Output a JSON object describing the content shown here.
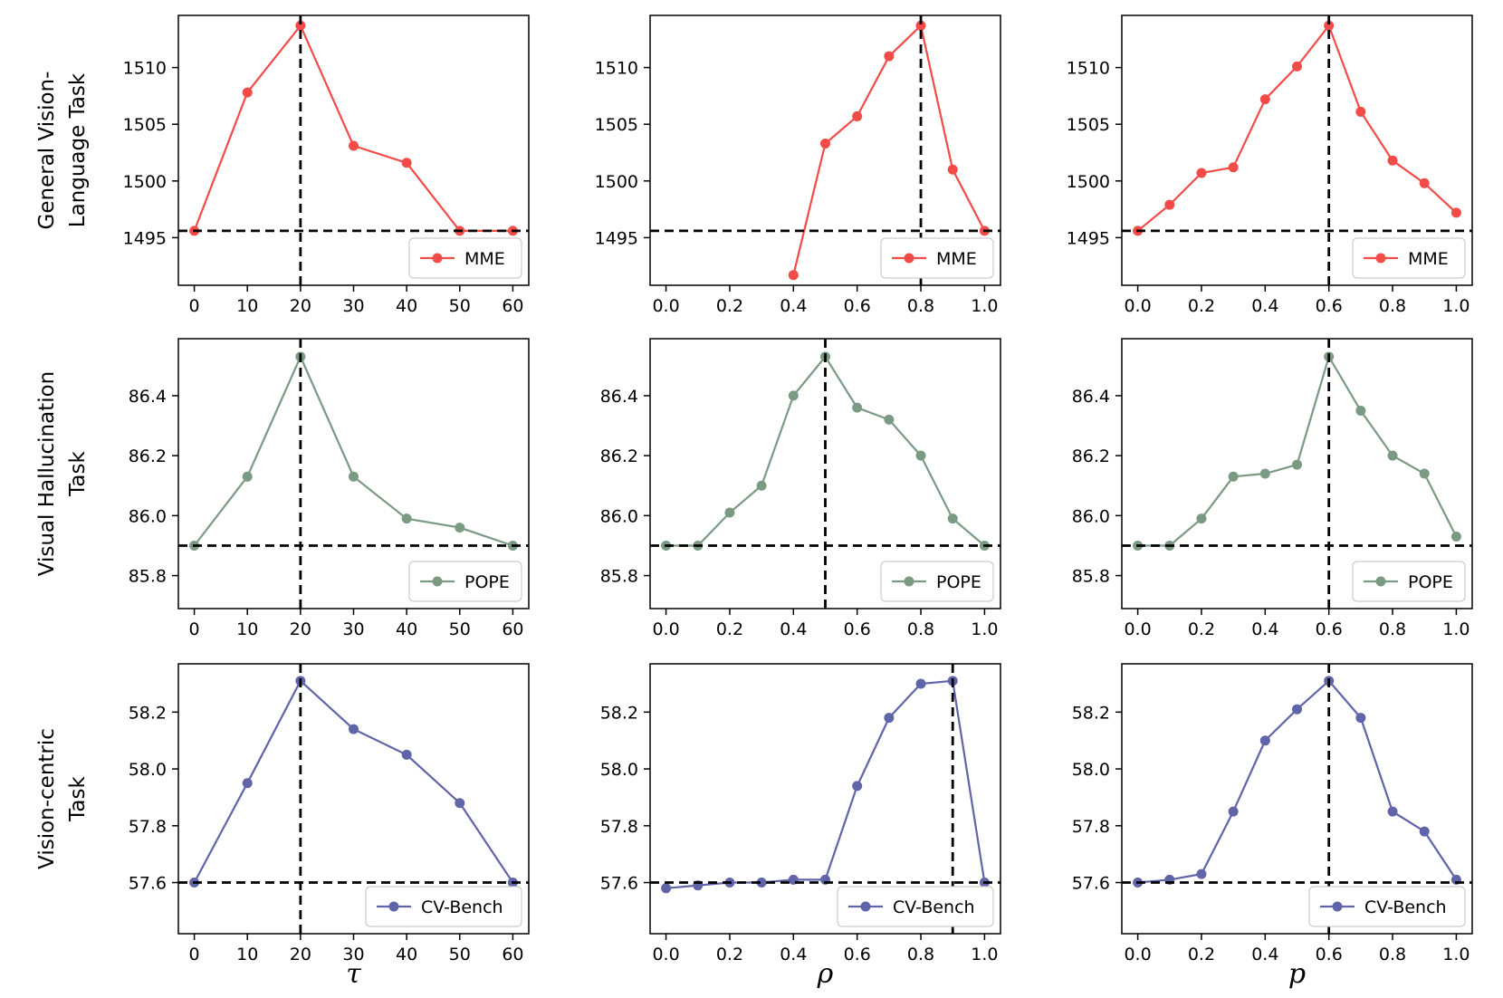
{
  "chart_data": [
    {
      "type": "line",
      "row": 0,
      "col": 0,
      "row_title": [
        "General Vision-",
        "Language Task"
      ],
      "xlabel": "τ",
      "x": [
        0,
        10,
        20,
        30,
        40,
        50,
        60
      ],
      "xticks": [
        "0",
        "10",
        "20",
        "30",
        "40",
        "50",
        "60"
      ],
      "xlim": [
        -3,
        63
      ],
      "series": [
        {
          "name": "MME",
          "values": [
            1495.6,
            1507.8,
            1513.7,
            1503.1,
            1501.6,
            1495.6,
            1495.6
          ]
        }
      ],
      "ylim": [
        1490.8,
        1514.6
      ],
      "yticks": [
        1495,
        1500,
        1505,
        1510
      ],
      "ytick_labels": [
        "1495",
        "1500",
        "1505",
        "1510"
      ],
      "baseline_y": 1495.6,
      "optimum_x": 20,
      "color": "#f24b48",
      "legend": "MME"
    },
    {
      "type": "line",
      "row": 0,
      "col": 1,
      "xlabel": "ρ",
      "x": [
        0.4,
        0.5,
        0.6,
        0.7,
        0.8,
        0.9,
        1.0
      ],
      "xticks": [
        "0.0",
        "0.2",
        "0.4",
        "0.6",
        "0.8",
        "1.0"
      ],
      "xlim": [
        -0.05,
        1.05
      ],
      "series": [
        {
          "name": "MME",
          "values": [
            1491.7,
            1503.3,
            1505.7,
            1511.0,
            1513.7,
            1501.0,
            1495.6
          ]
        }
      ],
      "ylim": [
        1490.8,
        1514.6
      ],
      "yticks": [
        1495,
        1500,
        1505,
        1510
      ],
      "ytick_labels": [
        "1495",
        "1500",
        "1505",
        "1510"
      ],
      "baseline_y": 1495.6,
      "optimum_x": 0.8,
      "color": "#f24b48",
      "legend": "MME"
    },
    {
      "type": "line",
      "row": 0,
      "col": 2,
      "xlabel": "p",
      "x": [
        0.0,
        0.1,
        0.2,
        0.3,
        0.4,
        0.5,
        0.6,
        0.7,
        0.8,
        0.9,
        1.0
      ],
      "xticks": [
        "0.0",
        "0.2",
        "0.4",
        "0.6",
        "0.8",
        "1.0"
      ],
      "xlim": [
        -0.05,
        1.05
      ],
      "series": [
        {
          "name": "MME",
          "values": [
            1495.6,
            1497.9,
            1500.7,
            1501.2,
            1507.2,
            1510.1,
            1513.7,
            1506.1,
            1501.8,
            1499.8,
            1497.2
          ]
        }
      ],
      "ylim": [
        1490.8,
        1514.6
      ],
      "yticks": [
        1495,
        1500,
        1505,
        1510
      ],
      "ytick_labels": [
        "1495",
        "1500",
        "1505",
        "1510"
      ],
      "baseline_y": 1495.6,
      "optimum_x": 0.6,
      "color": "#f24b48",
      "legend": "MME"
    },
    {
      "type": "line",
      "row": 1,
      "col": 0,
      "row_title": [
        "Visual Hallucination",
        "Task"
      ],
      "xlabel": "τ",
      "x": [
        0,
        10,
        20,
        30,
        40,
        50,
        60
      ],
      "xticks": [
        "0",
        "10",
        "20",
        "30",
        "40",
        "50",
        "60"
      ],
      "xlim": [
        -3,
        63
      ],
      "series": [
        {
          "name": "POPE",
          "values": [
            85.9,
            86.13,
            86.53,
            86.13,
            85.99,
            85.96,
            85.9
          ]
        }
      ],
      "ylim": [
        85.69,
        86.59
      ],
      "yticks": [
        85.8,
        86.0,
        86.2,
        86.4
      ],
      "ytick_labels": [
        "85.8",
        "86.0",
        "86.2",
        "86.4"
      ],
      "baseline_y": 85.9,
      "optimum_x": 20,
      "color": "#7a9a83",
      "legend": "POPE"
    },
    {
      "type": "line",
      "row": 1,
      "col": 1,
      "xlabel": "ρ",
      "x": [
        0.0,
        0.1,
        0.2,
        0.3,
        0.4,
        0.5,
        0.6,
        0.7,
        0.8,
        0.9,
        1.0
      ],
      "xticks": [
        "0.0",
        "0.2",
        "0.4",
        "0.6",
        "0.8",
        "1.0"
      ],
      "xlim": [
        -0.05,
        1.05
      ],
      "series": [
        {
          "name": "POPE",
          "values": [
            85.9,
            85.9,
            86.01,
            86.1,
            86.4,
            86.53,
            86.36,
            86.32,
            86.2,
            85.99,
            85.9
          ]
        }
      ],
      "ylim": [
        85.69,
        86.59
      ],
      "yticks": [
        85.8,
        86.0,
        86.2,
        86.4
      ],
      "ytick_labels": [
        "85.8",
        "86.0",
        "86.2",
        "86.4"
      ],
      "baseline_y": 85.9,
      "optimum_x": 0.5,
      "color": "#7a9a83",
      "legend": "POPE"
    },
    {
      "type": "line",
      "row": 1,
      "col": 2,
      "xlabel": "p",
      "x": [
        0.0,
        0.1,
        0.2,
        0.3,
        0.4,
        0.5,
        0.6,
        0.7,
        0.8,
        0.9,
        1.0
      ],
      "xticks": [
        "0.0",
        "0.2",
        "0.4",
        "0.6",
        "0.8",
        "1.0"
      ],
      "xlim": [
        -0.05,
        1.05
      ],
      "series": [
        {
          "name": "POPE",
          "values": [
            85.9,
            85.9,
            85.99,
            86.13,
            86.14,
            86.17,
            86.53,
            86.35,
            86.2,
            86.14,
            85.93
          ]
        }
      ],
      "ylim": [
        85.69,
        86.59
      ],
      "yticks": [
        85.8,
        86.0,
        86.2,
        86.4
      ],
      "ytick_labels": [
        "85.8",
        "86.0",
        "86.2",
        "86.4"
      ],
      "baseline_y": 85.9,
      "optimum_x": 0.6,
      "color": "#7a9a83",
      "legend": "POPE"
    },
    {
      "type": "line",
      "row": 2,
      "col": 0,
      "row_title": [
        "Vision-centric",
        "Task"
      ],
      "xlabel": "τ",
      "x": [
        0,
        10,
        20,
        30,
        40,
        50,
        60
      ],
      "xticks": [
        "0",
        "10",
        "20",
        "30",
        "40",
        "50",
        "60"
      ],
      "xlim": [
        -3,
        63
      ],
      "series": [
        {
          "name": "CV-Bench",
          "values": [
            57.6,
            57.95,
            58.31,
            58.14,
            58.05,
            57.88,
            57.6
          ]
        }
      ],
      "ylim": [
        57.42,
        58.37
      ],
      "yticks": [
        57.6,
        57.8,
        58.0,
        58.2
      ],
      "ytick_labels": [
        "57.6",
        "57.8",
        "58.0",
        "58.2"
      ],
      "baseline_y": 57.6,
      "optimum_x": 20,
      "color": "#6064a8",
      "legend": "CV-Bench"
    },
    {
      "type": "line",
      "row": 2,
      "col": 1,
      "xlabel": "ρ",
      "x": [
        0.0,
        0.1,
        0.2,
        0.3,
        0.4,
        0.5,
        0.6,
        0.7,
        0.8,
        0.9,
        1.0
      ],
      "xticks": [
        "0.0",
        "0.2",
        "0.4",
        "0.6",
        "0.8",
        "1.0"
      ],
      "xlim": [
        -0.05,
        1.05
      ],
      "series": [
        {
          "name": "CV-Bench",
          "values": [
            57.58,
            57.59,
            57.6,
            57.6,
            57.61,
            57.61,
            57.94,
            58.18,
            58.3,
            58.31,
            57.6
          ]
        }
      ],
      "ylim": [
        57.42,
        58.37
      ],
      "yticks": [
        57.6,
        57.8,
        58.0,
        58.2
      ],
      "ytick_labels": [
        "57.6",
        "57.8",
        "58.0",
        "58.2"
      ],
      "baseline_y": 57.6,
      "optimum_x": 0.9,
      "color": "#6064a8",
      "legend": "CV-Bench"
    },
    {
      "type": "line",
      "row": 2,
      "col": 2,
      "xlabel": "p",
      "x": [
        0.0,
        0.1,
        0.2,
        0.3,
        0.4,
        0.5,
        0.6,
        0.7,
        0.8,
        0.9,
        1.0
      ],
      "xticks": [
        "0.0",
        "0.2",
        "0.4",
        "0.6",
        "0.8",
        "1.0"
      ],
      "xlim": [
        -0.05,
        1.05
      ],
      "series": [
        {
          "name": "CV-Bench",
          "values": [
            57.6,
            57.61,
            57.63,
            57.85,
            58.1,
            58.21,
            58.31,
            58.18,
            57.85,
            57.78,
            57.61
          ]
        }
      ],
      "ylim": [
        57.42,
        58.37
      ],
      "yticks": [
        57.6,
        57.8,
        58.0,
        58.2
      ],
      "ytick_labels": [
        "57.6",
        "57.8",
        "58.0",
        "58.2"
      ],
      "baseline_y": 57.6,
      "optimum_x": 0.6,
      "color": "#6064a8",
      "legend": "CV-Bench"
    }
  ]
}
